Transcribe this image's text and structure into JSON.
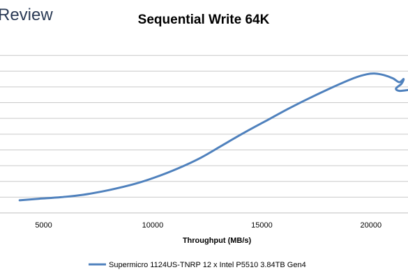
{
  "brand": {
    "logo_text": "Review"
  },
  "chart_data": {
    "type": "line",
    "title": "Sequential Write 64K",
    "xlabel": "Throughput (MB/s)",
    "ylabel": "",
    "xlim": [
      3000,
      21700
    ],
    "ylim": [
      0,
      11
    ],
    "x_ticks": [
      5000,
      10000,
      15000,
      20000
    ],
    "y_tick_labels_shown": false,
    "grid": "horizontal",
    "legend_placement": "bottom",
    "colors": {
      "series": "#4f81bd",
      "grid": "#c9c9c9"
    },
    "series": [
      {
        "name": "Supermicro 1124US-TNRP 12 x Intel P5510 3.84TB Gen4",
        "x": [
          3900,
          4800,
          5800,
          6800,
          8000,
          9200,
          10200,
          11200,
          12200,
          13200,
          14200,
          15200,
          16200,
          17200,
          18200,
          19200,
          19800,
          20200,
          20600,
          21000,
          21300,
          21500,
          21400,
          21150,
          21300,
          21700
        ],
        "y": [
          0.8,
          0.9,
          1.0,
          1.15,
          1.45,
          1.85,
          2.3,
          2.85,
          3.5,
          4.3,
          5.1,
          5.85,
          6.6,
          7.3,
          7.95,
          8.55,
          8.8,
          8.85,
          8.75,
          8.55,
          8.3,
          8.5,
          8.2,
          7.9,
          7.75,
          7.8
        ]
      }
    ]
  }
}
